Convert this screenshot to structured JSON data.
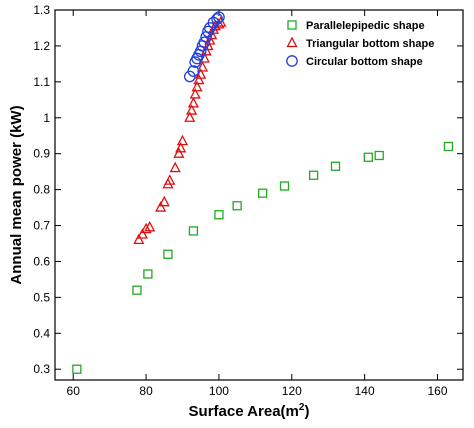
{
  "chart_data": {
    "type": "scatter",
    "xlabel": "Surface Area(m",
    "xlabel_sup": "2",
    "xlabel_end": ")",
    "ylabel": "Annual mean power (kW)",
    "xlim": [
      55,
      167
    ],
    "ylim": [
      0.27,
      1.3
    ],
    "x_ticks": [
      60,
      80,
      100,
      120,
      140,
      160
    ],
    "y_ticks": [
      0.3,
      0.4,
      0.5,
      0.6,
      0.7,
      0.8,
      0.9,
      1,
      1.1,
      1.2,
      1.3
    ],
    "grid": false,
    "legend_position": "top-right",
    "series": [
      {
        "name": "Parallelepipedic shape",
        "marker": "square",
        "color": "#22aa22",
        "points": [
          [
            61,
            0.3
          ],
          [
            77.5,
            0.52
          ],
          [
            80.5,
            0.565
          ],
          [
            86,
            0.62
          ],
          [
            93,
            0.685
          ],
          [
            100,
            0.73
          ],
          [
            105,
            0.755
          ],
          [
            112,
            0.79
          ],
          [
            118,
            0.81
          ],
          [
            126,
            0.84
          ],
          [
            132,
            0.865
          ],
          [
            141,
            0.89
          ],
          [
            144,
            0.895
          ],
          [
            163,
            0.92
          ]
        ]
      },
      {
        "name": "Triangular bottom shape",
        "marker": "triangle",
        "color": "#e01010",
        "points": [
          [
            78,
            0.66
          ],
          [
            79,
            0.675
          ],
          [
            80,
            0.69
          ],
          [
            81,
            0.695
          ],
          [
            84,
            0.75
          ],
          [
            85,
            0.765
          ],
          [
            86,
            0.815
          ],
          [
            86.5,
            0.825
          ],
          [
            88,
            0.86
          ],
          [
            89,
            0.9
          ],
          [
            89.5,
            0.915
          ],
          [
            90,
            0.935
          ],
          [
            92,
            1.0
          ],
          [
            92.5,
            1.02
          ],
          [
            93,
            1.04
          ],
          [
            93.5,
            1.065
          ],
          [
            94,
            1.085
          ],
          [
            94.5,
            1.105
          ],
          [
            95,
            1.12
          ],
          [
            95.5,
            1.14
          ],
          [
            96,
            1.165
          ],
          [
            96.5,
            1.185
          ],
          [
            97,
            1.2
          ],
          [
            97.5,
            1.215
          ],
          [
            98,
            1.23
          ],
          [
            98.5,
            1.245
          ],
          [
            99,
            1.255
          ],
          [
            100,
            1.26
          ],
          [
            100.5,
            1.265
          ]
        ]
      },
      {
        "name": "Circular bottom shape",
        "marker": "circle",
        "color": "#2040dd",
        "points": [
          [
            92,
            1.115
          ],
          [
            93,
            1.13
          ],
          [
            93.5,
            1.155
          ],
          [
            94,
            1.165
          ],
          [
            94.5,
            1.175
          ],
          [
            95,
            1.185
          ],
          [
            95.5,
            1.2
          ],
          [
            96,
            1.21
          ],
          [
            96.5,
            1.225
          ],
          [
            97,
            1.24
          ],
          [
            97.5,
            1.25
          ],
          [
            98.5,
            1.265
          ],
          [
            99.5,
            1.275
          ],
          [
            100,
            1.28
          ]
        ]
      }
    ]
  }
}
